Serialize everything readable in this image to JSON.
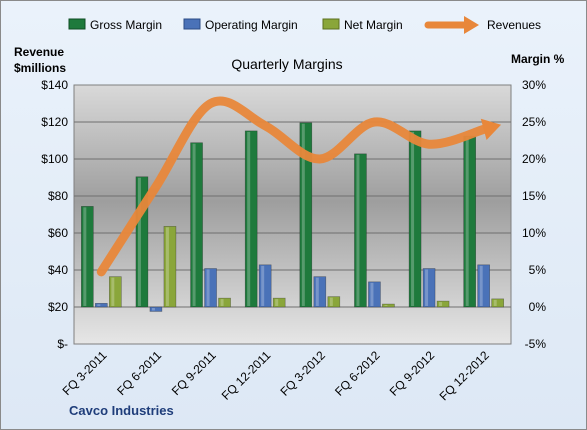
{
  "chart_data": {
    "type": "bar",
    "title": "Quarterly Margins",
    "company": "Cavco Industries",
    "left_axis": {
      "label_lines": [
        "Revenue",
        "$millions"
      ],
      "range": [
        0,
        140
      ],
      "ticks": [
        0,
        20,
        40,
        60,
        80,
        100,
        120,
        140
      ],
      "tick_labels": [
        "$-",
        "$20",
        "$40",
        "$60",
        "$80",
        "$100",
        "$120",
        "$140"
      ]
    },
    "right_axis": {
      "label": "Margin %",
      "range": [
        -5,
        30
      ],
      "ticks": [
        -5,
        0,
        5,
        10,
        15,
        20,
        25,
        30
      ],
      "tick_labels": [
        "-5%",
        "0%",
        "5%",
        "10%",
        "15%",
        "20%",
        "25%",
        "30%"
      ]
    },
    "categories": [
      "FQ 3-2011",
      "FQ 6-2011",
      "FQ 9-2011",
      "FQ 12-2011",
      "FQ 3-2012",
      "FQ 6-2012",
      "FQ 9-2012",
      "FQ 12-2012"
    ],
    "series": [
      {
        "name": "Gross Margin",
        "axis": "right",
        "kind": "bar",
        "color": "#1e7a3c",
        "values": [
          13.6,
          17.6,
          22.2,
          23.8,
          24.9,
          20.7,
          23.8,
          23.1
        ]
      },
      {
        "name": "Operating Margin",
        "axis": "right",
        "kind": "bar",
        "color": "#4a72b8",
        "values": [
          0.5,
          -0.6,
          5.2,
          5.7,
          4.1,
          3.4,
          5.2,
          5.7
        ]
      },
      {
        "name": "Net Margin",
        "axis": "right",
        "kind": "bar",
        "color": "#8aa63a",
        "values": [
          4.1,
          10.9,
          1.2,
          1.2,
          1.4,
          0.4,
          0.8,
          1.1
        ]
      },
      {
        "name": "Revenues",
        "axis": "left",
        "kind": "line",
        "color": "#e8873a",
        "values": [
          39,
          85,
          130,
          118,
          100,
          120,
          108,
          116
        ]
      }
    ],
    "grid": "horizontal",
    "legend_position": "top"
  }
}
